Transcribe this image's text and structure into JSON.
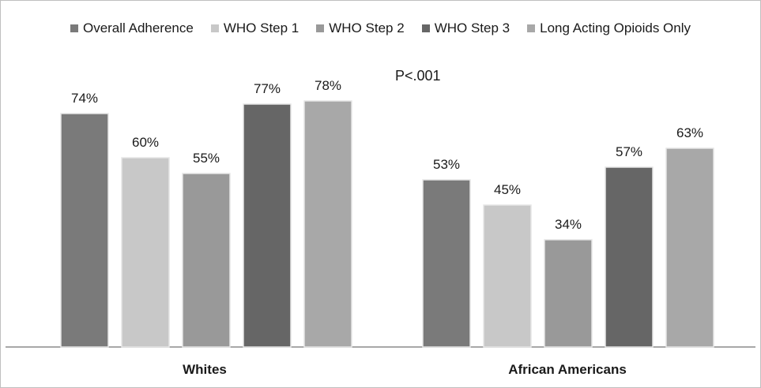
{
  "chart_data": {
    "type": "bar",
    "categories": [
      "Whites",
      "African Americans"
    ],
    "series": [
      {
        "name": "Overall Adherence",
        "values": [
          74,
          53
        ],
        "color": "#7a7a7a"
      },
      {
        "name": "WHO Step 1",
        "values": [
          60,
          45
        ],
        "color": "#c8c8c8"
      },
      {
        "name": "WHO Step 2",
        "values": [
          55,
          34
        ],
        "color": "#999999"
      },
      {
        "name": "WHO Step 3",
        "values": [
          77,
          57
        ],
        "color": "#666666"
      },
      {
        "name": "Long Acting Opioids Only",
        "values": [
          78,
          63
        ],
        "color": "#a8a8a8"
      }
    ],
    "data_labels": [
      [
        "74%",
        "53%"
      ],
      [
        "60%",
        "45%"
      ],
      [
        "55%",
        "34%"
      ],
      [
        "77%",
        "57%"
      ],
      [
        "78%",
        "63%"
      ]
    ],
    "annotation": "P<.001",
    "legend_position": "top",
    "ylim": [
      0,
      100
    ],
    "grid": false,
    "title": "",
    "xlabel": "",
    "ylabel": ""
  }
}
